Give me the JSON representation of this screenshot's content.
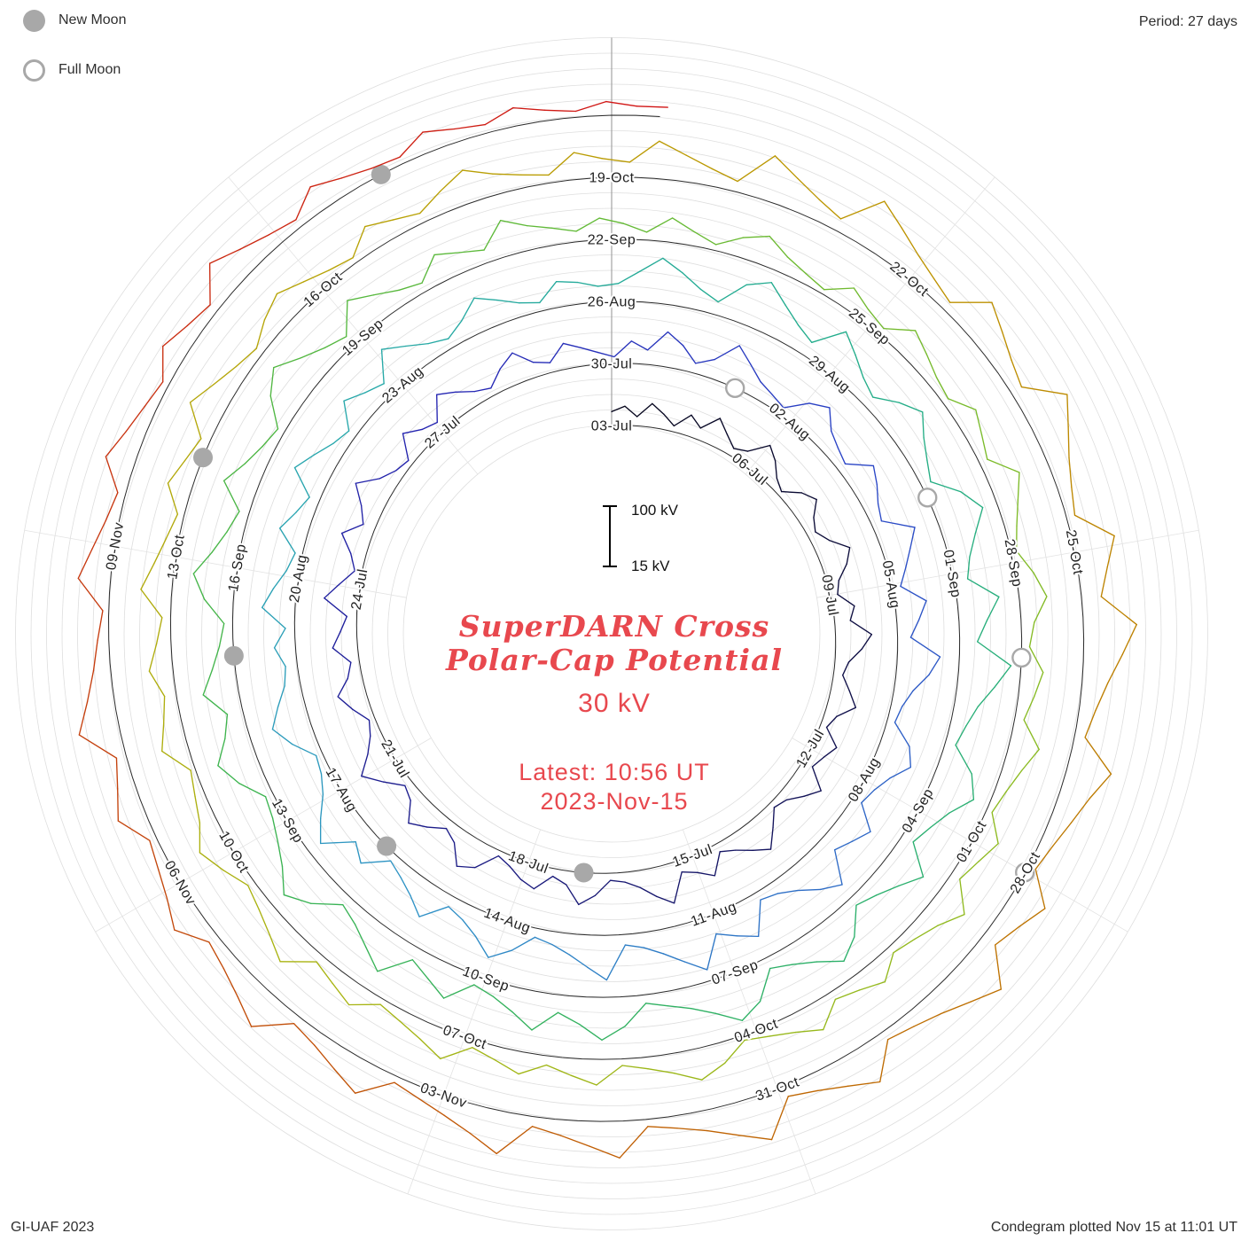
{
  "header": {
    "period_label": "Period: 27 days"
  },
  "legend": {
    "new_moon": "New Moon",
    "full_moon": "Full Moon"
  },
  "footer": {
    "left": "GI-UAF 2023",
    "right": "Condegram plotted Nov 15 at 11:01 UT"
  },
  "center": {
    "title_line1": "SuperDARN Cross",
    "title_line2": "Polar-Cap Potential",
    "current_value": "30 kV",
    "latest_line1": "Latest: 10:56 UT",
    "latest_line2": "2023-Nov-15",
    "accent_color": "#e8484e"
  },
  "scale": {
    "top_label": "100 kV",
    "bottom_label": "15 kV",
    "top_kv": 100,
    "bottom_kv": 15
  },
  "chart_data": {
    "type": "line",
    "layout": "polar-spiral-condegram",
    "title": "SuperDARN Cross Polar-Cap Potential",
    "units": "kV",
    "period_days": 27,
    "start_date": "2023-07-03",
    "end_date_time": "2023-11-15 10:56 UT",
    "total_days": 135.456,
    "value_range": [
      15,
      100
    ],
    "latest_value_kv": 30,
    "moon_color": "#a8a8a8",
    "grid_on": true,
    "date_labels": [
      {
        "l": "03-Jul",
        "d": 0
      },
      {
        "l": "06-Jul",
        "d": 3
      },
      {
        "l": "09-Jul",
        "d": 6
      },
      {
        "l": "12-Jul",
        "d": 9
      },
      {
        "l": "15-Jul",
        "d": 12
      },
      {
        "l": "18-Jul",
        "d": 15
      },
      {
        "l": "21-Jul",
        "d": 18
      },
      {
        "l": "24-Jul",
        "d": 21
      },
      {
        "l": "27-Jul",
        "d": 24
      },
      {
        "l": "30-Jul",
        "d": 27
      },
      {
        "l": "02-Aug",
        "d": 30
      },
      {
        "l": "05-Aug",
        "d": 33
      },
      {
        "l": "08-Aug",
        "d": 36
      },
      {
        "l": "11-Aug",
        "d": 39
      },
      {
        "l": "14-Aug",
        "d": 42
      },
      {
        "l": "17-Aug",
        "d": 45
      },
      {
        "l": "20-Aug",
        "d": 48
      },
      {
        "l": "23-Aug",
        "d": 51
      },
      {
        "l": "26-Aug",
        "d": 54
      },
      {
        "l": "29-Aug",
        "d": 57
      },
      {
        "l": "01-Sep",
        "d": 60
      },
      {
        "l": "04-Sep",
        "d": 63
      },
      {
        "l": "07-Sep",
        "d": 66
      },
      {
        "l": "10-Sep",
        "d": 69
      },
      {
        "l": "13-Sep",
        "d": 72
      },
      {
        "l": "16-Sep",
        "d": 75
      },
      {
        "l": "19-Sep",
        "d": 78
      },
      {
        "l": "22-Sep",
        "d": 81
      },
      {
        "l": "25-Sep",
        "d": 84
      },
      {
        "l": "28-Sep",
        "d": 87
      },
      {
        "l": "01-Oct",
        "d": 90
      },
      {
        "l": "04-Oct",
        "d": 93
      },
      {
        "l": "07-Oct",
        "d": 96
      },
      {
        "l": "10-Oct",
        "d": 99
      },
      {
        "l": "13-Oct",
        "d": 102
      },
      {
        "l": "16-Oct",
        "d": 105
      },
      {
        "l": "19-Oct",
        "d": 108
      },
      {
        "l": "22-Oct",
        "d": 111
      },
      {
        "l": "25-Oct",
        "d": 114
      },
      {
        "l": "28-Oct",
        "d": 117
      },
      {
        "l": "31-Oct",
        "d": 120
      },
      {
        "l": "03-Nov",
        "d": 123
      },
      {
        "l": "06-Nov",
        "d": 126
      },
      {
        "l": "09-Nov",
        "d": 129
      }
    ],
    "new_moon_days": [
      14,
      44,
      74,
      103,
      133
    ],
    "full_moon_days": [
      29,
      59,
      88,
      117
    ],
    "color_stops": [
      [
        0.0,
        "#05051a"
      ],
      [
        0.06,
        "#10104a"
      ],
      [
        0.12,
        "#1b1b86"
      ],
      [
        0.18,
        "#2424b2"
      ],
      [
        0.23,
        "#2a44c6"
      ],
      [
        0.28,
        "#2e6ec6"
      ],
      [
        0.32,
        "#2f92c6"
      ],
      [
        0.37,
        "#28a8ac"
      ],
      [
        0.42,
        "#23ad8c"
      ],
      [
        0.48,
        "#2cb069"
      ],
      [
        0.54,
        "#3eb44e"
      ],
      [
        0.6,
        "#64ba35"
      ],
      [
        0.66,
        "#8cbb21"
      ],
      [
        0.72,
        "#a8b412"
      ],
      [
        0.78,
        "#b8a206"
      ],
      [
        0.82,
        "#bd9300"
      ],
      [
        0.86,
        "#bd7900"
      ],
      [
        0.9,
        "#c05d04"
      ],
      [
        0.94,
        "#c4410d"
      ],
      [
        1.0,
        "#d11515"
      ]
    ],
    "values_unit": "kV, sampled ~4/day, estimated",
    "values": [
      36,
      44,
      29,
      51,
      38,
      24,
      47,
      33,
      58,
      41,
      27,
      35,
      62,
      49,
      31,
      22,
      44,
      56,
      37,
      28,
      41,
      65,
      52,
      33,
      26,
      48,
      39,
      70,
      55,
      36,
      29,
      43,
      58,
      34,
      25,
      51,
      40,
      32,
      63,
      47,
      30,
      24,
      45,
      68,
      53,
      38,
      28,
      57,
      42,
      33,
      75,
      59,
      41,
      30,
      26,
      49,
      64,
      36,
      27,
      52,
      44,
      31,
      23,
      55,
      67,
      39,
      29,
      46,
      61,
      35,
      27,
      50,
      73,
      48,
      32,
      24,
      42,
      58,
      37,
      28,
      53,
      40,
      30,
      66,
      45,
      26,
      38,
      60,
      34,
      48,
      71,
      43,
      29,
      23,
      56,
      39,
      31,
      64,
      50,
      35,
      27,
      47,
      62,
      38,
      30,
      54,
      43,
      33,
      25,
      49,
      37,
      68,
      52,
      30,
      44,
      77,
      58,
      41,
      33,
      26,
      55,
      70,
      46,
      36,
      29,
      62,
      51,
      38,
      31,
      74,
      57,
      42,
      28,
      63,
      49,
      35,
      80,
      65,
      44,
      32,
      27,
      59,
      72,
      50,
      37,
      30,
      66,
      53,
      41,
      86,
      69,
      48,
      34,
      28,
      75,
      60,
      45,
      92,
      71,
      52,
      38,
      31,
      83,
      64,
      47,
      35,
      29,
      57,
      78,
      55,
      40,
      32,
      68,
      49,
      36,
      27,
      61,
      45,
      88,
      66,
      43,
      30,
      25,
      52,
      73,
      56,
      39,
      33,
      47,
      29,
      65,
      50,
      34,
      26,
      58,
      42,
      31,
      70,
      53,
      37,
      28,
      62,
      46,
      35,
      76,
      57,
      40,
      30,
      44,
      67,
      51,
      36,
      28,
      54,
      48,
      39,
      42,
      61,
      84,
      66,
      47,
      35,
      73,
      90,
      68,
      50,
      38,
      81,
      62,
      44,
      33,
      57,
      76,
      55,
      41,
      30,
      65,
      87,
      64,
      46,
      36,
      79,
      58,
      42,
      94,
      72,
      51,
      39,
      31,
      68,
      85,
      60,
      45,
      34,
      77,
      56,
      40,
      29,
      63,
      82,
      59,
      43,
      32,
      71,
      88,
      65,
      48,
      37,
      28,
      60,
      80,
      57,
      42,
      74,
      53,
      38,
      30,
      66,
      49,
      35,
      78,
      58,
      41,
      31,
      64,
      86,
      61,
      45,
      33,
      27,
      55,
      75,
      52,
      39,
      69,
      50,
      36,
      28,
      59,
      79,
      56,
      40,
      30,
      67,
      47,
      34,
      26,
      62,
      83,
      60,
      43,
      32,
      72,
      54,
      38,
      29,
      58,
      45,
      35,
      70,
      52,
      41,
      31,
      48,
      39,
      27,
      52,
      36,
      24,
      45,
      60,
      41,
      30,
      22,
      48,
      34,
      26,
      56,
      43,
      31,
      25,
      50,
      38,
      28,
      64,
      47,
      33,
      23,
      42,
      57,
      35,
      27,
      49,
      39,
      29,
      61,
      44,
      32,
      24,
      53,
      40,
      30,
      67,
      46,
      34,
      26,
      51,
      37,
      28,
      58,
      42,
      31,
      23,
      47,
      63,
      45,
      33,
      25,
      54,
      41,
      29,
      49,
      36,
      27,
      59,
      43,
      32,
      24,
      50,
      38,
      28,
      65,
      48,
      35,
      26,
      44,
      61,
      40,
      30,
      22,
      55,
      42,
      33,
      51,
      37,
      28,
      62,
      46,
      34,
      25,
      52,
      39,
      29,
      68,
      50,
      36,
      27,
      45,
      58,
      43,
      31,
      24,
      53,
      40,
      30,
      48,
      66,
      47,
      35,
      27,
      56,
      44,
      38,
      72,
      55,
      41,
      31,
      84,
      63,
      46,
      34,
      90,
      70,
      52,
      39,
      29,
      75,
      58,
      43,
      33,
      87,
      66,
      48,
      36,
      28,
      79,
      60,
      45,
      96,
      74,
      54,
      40,
      31,
      82,
      61,
      47,
      35,
      27,
      69,
      51,
      38,
      88,
      67,
      49,
      37,
      29,
      76,
      57,
      42,
      32,
      85,
      64,
      46,
      34,
      26,
      71,
      53,
      39,
      30,
      80,
      59,
      44,
      33,
      25,
      66,
      50,
      36,
      28,
      73,
      54,
      40,
      31,
      62,
      45,
      34,
      26,
      58,
      42,
      30,
      77,
      56,
      41,
      32,
      24,
      64,
      48,
      35,
      27,
      60,
      44,
      33,
      25,
      52,
      38,
      29,
      70,
      51,
      37,
      28,
      55,
      40,
      30,
      26,
      47,
      35,
      28,
      43,
      31,
      24,
      36,
      29,
      30
    ]
  }
}
